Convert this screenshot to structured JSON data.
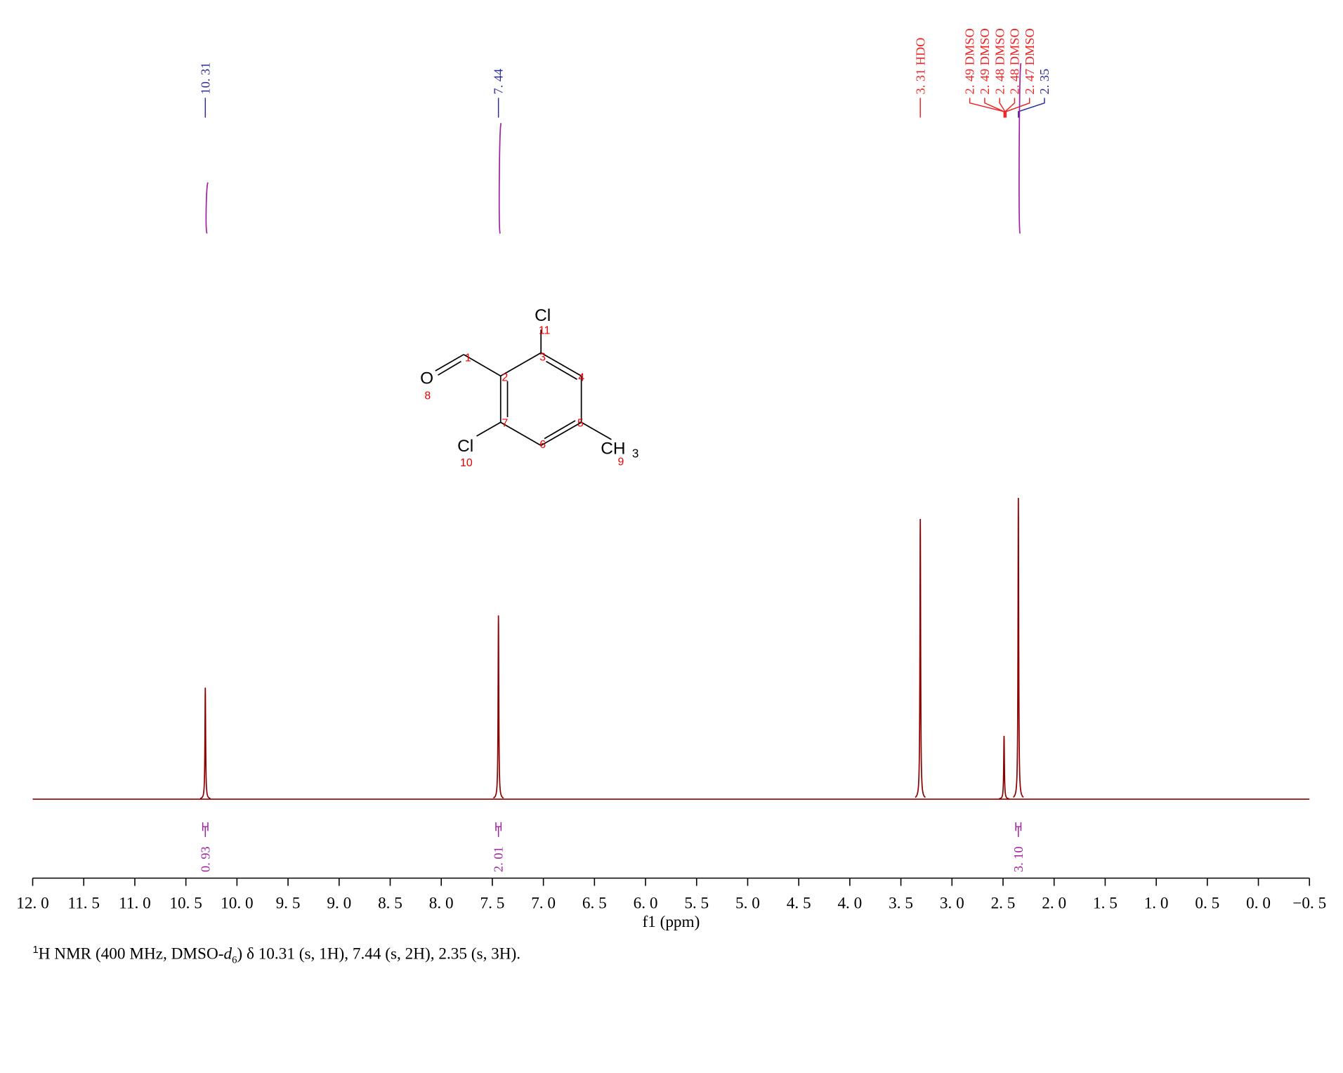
{
  "chart_data": {
    "type": "nmr",
    "x": [
      10.31,
      7.44,
      3.31,
      2.49,
      2.35
    ],
    "values": [
      37,
      61,
      93,
      21,
      100
    ],
    "color": "#8b0000",
    "xlim": [
      12.0,
      -0.5
    ],
    "xticks": [
      {
        "value": 12.0,
        "label": "12. 0"
      },
      {
        "value": 11.5,
        "label": "11. 5"
      },
      {
        "value": 11.0,
        "label": "11. 0"
      },
      {
        "value": 10.5,
        "label": "10. 5"
      },
      {
        "value": 10.0,
        "label": "10. 0"
      },
      {
        "value": 9.5,
        "label": "9. 5"
      },
      {
        "value": 9.0,
        "label": "9. 0"
      },
      {
        "value": 8.5,
        "label": "8. 5"
      },
      {
        "value": 8.0,
        "label": "8. 0"
      },
      {
        "value": 7.5,
        "label": "7. 5"
      },
      {
        "value": 7.0,
        "label": "7. 0"
      },
      {
        "value": 6.5,
        "label": "6. 5"
      },
      {
        "value": 6.0,
        "label": "6. 0"
      },
      {
        "value": 5.5,
        "label": "5. 5"
      },
      {
        "value": 5.0,
        "label": "5. 0"
      },
      {
        "value": 4.5,
        "label": "4. 5"
      },
      {
        "value": 4.0,
        "label": "4. 0"
      },
      {
        "value": 3.5,
        "label": "3. 5"
      },
      {
        "value": 3.0,
        "label": "3. 0"
      },
      {
        "value": 2.5,
        "label": "2. 5"
      },
      {
        "value": 2.0,
        "label": "2. 0"
      },
      {
        "value": 1.5,
        "label": "1. 5"
      },
      {
        "value": 1.0,
        "label": "1. 0"
      },
      {
        "value": 0.5,
        "label": "0. 5"
      },
      {
        "value": 0.0,
        "label": "0. 0"
      },
      {
        "value": -0.5,
        "label": "−0. 5"
      }
    ],
    "x_label": "f1 (ppm)",
    "peak_labels": {
      "x": [
        10.31,
        7.44,
        3.31,
        2.49,
        2.49,
        2.48,
        2.48,
        2.47,
        2.35
      ],
      "labels": [
        "10. 31",
        "7. 44",
        "3. 31 HDO",
        "2. 49 DMSO",
        "2. 49 DMSO",
        "2. 48 DMSO",
        "2. 48 DMSO",
        "2. 47 DMSO",
        "2. 35"
      ],
      "colors": [
        "#2b2b9b",
        "#2b2b9b",
        "#ee2222",
        "#ee2222",
        "#ee2222",
        "#ee2222",
        "#ee2222",
        "#ee2222",
        "#2b2b9b"
      ]
    },
    "integrals": {
      "x": [
        10.31,
        7.44,
        2.35
      ],
      "values": [
        0.93,
        2.01,
        3.1
      ],
      "value_labels": [
        "0. 93",
        "2. 01",
        "3. 10"
      ],
      "color": "#a020a0"
    }
  },
  "structure": {
    "atoms": [
      "O",
      "Cl",
      "Cl",
      "CH",
      "3"
    ],
    "numbers": [
      "1",
      "2",
      "3",
      "4",
      "5",
      "6",
      "7",
      "8",
      "9",
      "10",
      "11"
    ]
  },
  "caption": {
    "sup": "1",
    "a": "H NMR (400 MHz, DMSO-",
    "d": "d",
    "sub": "6",
    "b": ") δ 10.31 (s, 1H), 7.44 (s, 2H), 2.35 (s, 3H)."
  }
}
